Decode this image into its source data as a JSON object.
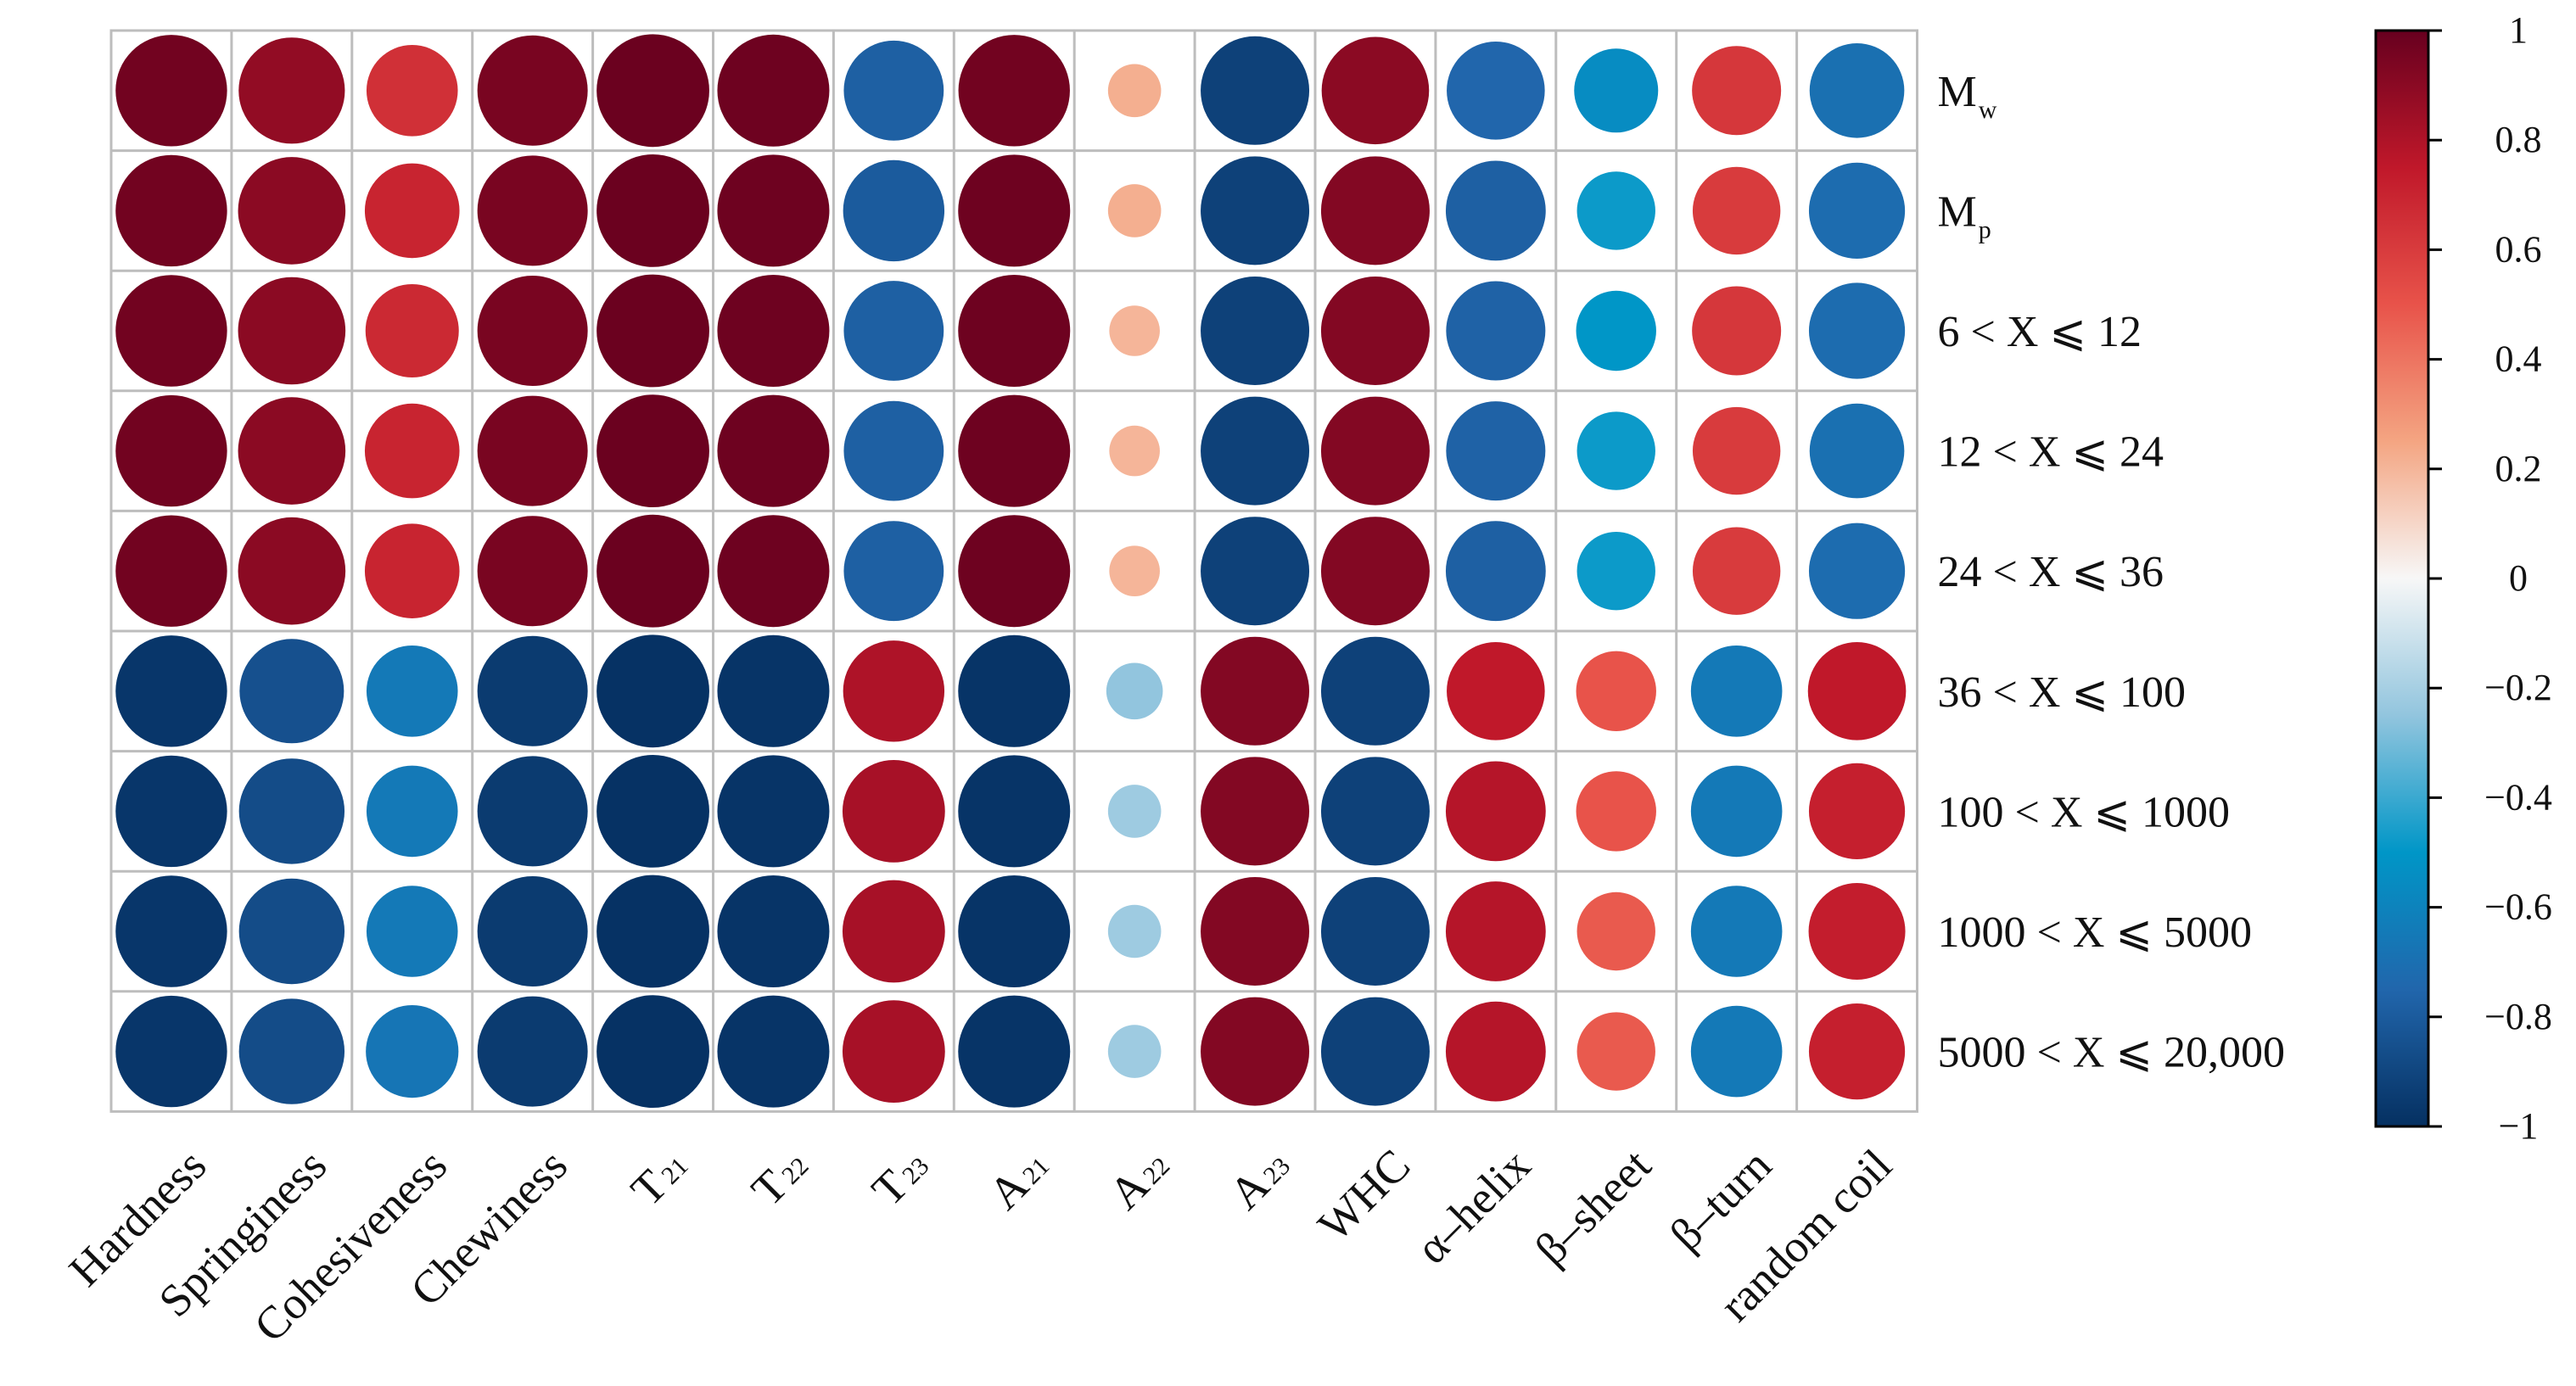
{
  "chart_data": {
    "type": "heatmap",
    "title": "",
    "columns": [
      "Hardness",
      "Springiness",
      "Cohesiveness",
      "Chewiness",
      "T21",
      "T22",
      "T23",
      "A21",
      "A22",
      "A23",
      "WHC",
      "α–helix",
      "β–sheet",
      "β–turn",
      "random coil"
    ],
    "column_labels": [
      {
        "main": "Hardness",
        "sub": ""
      },
      {
        "main": "Springiness",
        "sub": ""
      },
      {
        "main": "Cohesiveness",
        "sub": ""
      },
      {
        "main": "Chewiness",
        "sub": ""
      },
      {
        "main": "T",
        "sub": "21"
      },
      {
        "main": "T",
        "sub": "22"
      },
      {
        "main": "T",
        "sub": "23"
      },
      {
        "main": "A",
        "sub": "21"
      },
      {
        "main": "A",
        "sub": "22"
      },
      {
        "main": "A",
        "sub": "23"
      },
      {
        "main": "WHC",
        "sub": ""
      },
      {
        "main": "α–helix",
        "sub": ""
      },
      {
        "main": "β–sheet",
        "sub": ""
      },
      {
        "main": "β–turn",
        "sub": ""
      },
      {
        "main": "random coil",
        "sub": ""
      }
    ],
    "rows": [
      "Mw",
      "Mp",
      "6 < X ⩽ 12",
      "12 < X ⩽ 24",
      "24 < X ⩽ 36",
      "36 < X ⩽ 100",
      "100 < X ⩽ 1000",
      "1000 < X ⩽ 5000",
      "5000 < X ⩽ 20,000"
    ],
    "row_labels": [
      {
        "main": "M",
        "sub": "w"
      },
      {
        "main": "M",
        "sub": "p"
      },
      {
        "main": "6 < X ⩽ 12",
        "sub": ""
      },
      {
        "main": "12 < X ⩽ 24",
        "sub": ""
      },
      {
        "main": "24 < X ⩽ 36",
        "sub": ""
      },
      {
        "main": "36 < X ⩽ 100",
        "sub": ""
      },
      {
        "main": "100 < X ⩽ 1000",
        "sub": ""
      },
      {
        "main": "1000 < X ⩽ 5000",
        "sub": ""
      },
      {
        "main": "5000 < X ⩽ 20,000",
        "sub": ""
      }
    ],
    "values": [
      [
        0.97,
        0.88,
        0.65,
        0.95,
        0.99,
        0.98,
        -0.78,
        0.97,
        0.22,
        -0.92,
        0.9,
        -0.75,
        -0.55,
        0.62,
        -0.7
      ],
      [
        0.97,
        0.9,
        0.7,
        0.95,
        0.99,
        0.98,
        -0.8,
        0.98,
        0.22,
        -0.92,
        0.92,
        -0.78,
        -0.48,
        0.6,
        -0.72
      ],
      [
        0.97,
        0.9,
        0.68,
        0.95,
        0.99,
        0.98,
        -0.78,
        0.98,
        0.2,
        -0.92,
        0.92,
        -0.77,
        -0.5,
        0.62,
        -0.72
      ],
      [
        0.97,
        0.9,
        0.7,
        0.95,
        0.99,
        0.98,
        -0.78,
        0.98,
        0.2,
        -0.92,
        0.92,
        -0.77,
        -0.48,
        0.6,
        -0.7
      ],
      [
        0.97,
        0.9,
        0.7,
        0.95,
        0.99,
        0.98,
        -0.78,
        0.98,
        0.2,
        -0.92,
        0.92,
        -0.78,
        -0.48,
        0.6,
        -0.72
      ],
      [
        -0.97,
        -0.85,
        -0.65,
        -0.95,
        -0.99,
        -0.98,
        0.8,
        -0.98,
        -0.25,
        0.92,
        -0.92,
        0.75,
        0.5,
        -0.65,
        0.75
      ],
      [
        -0.97,
        -0.87,
        -0.65,
        -0.95,
        -0.99,
        -0.98,
        0.82,
        -0.98,
        -0.22,
        0.92,
        -0.92,
        0.78,
        0.5,
        -0.65,
        0.72
      ],
      [
        -0.97,
        -0.87,
        -0.65,
        -0.95,
        -0.99,
        -0.98,
        0.82,
        -0.98,
        -0.22,
        0.92,
        -0.92,
        0.78,
        0.48,
        -0.65,
        0.73
      ],
      [
        -0.97,
        -0.87,
        -0.67,
        -0.95,
        -0.99,
        -0.98,
        0.82,
        -0.98,
        -0.22,
        0.92,
        -0.92,
        0.78,
        0.48,
        -0.65,
        0.72
      ]
    ],
    "colorbar": {
      "range": [
        -1,
        1
      ],
      "ticks": [
        1,
        0.8,
        0.6,
        0.4,
        0.2,
        0,
        -0.2,
        -0.4,
        -0.6,
        -0.8,
        -1
      ],
      "tick_labels": [
        "1",
        "0.8",
        "0.6",
        "0.4",
        "0.2",
        "0",
        "−0.2",
        "−0.4",
        "−0.6",
        "−0.8",
        "−1"
      ],
      "stops": [
        {
          "value": -1.0,
          "color": "#053061"
        },
        {
          "value": -0.75,
          "color": "#2166ac"
        },
        {
          "value": -0.5,
          "color": "#0096c7"
        },
        {
          "value": -0.25,
          "color": "#92c5de"
        },
        {
          "value": 0.0,
          "color": "#f7f7f7"
        },
        {
          "value": 0.25,
          "color": "#f4a582"
        },
        {
          "value": 0.5,
          "color": "#e8534a"
        },
        {
          "value": 0.75,
          "color": "#c0182a"
        },
        {
          "value": 1.0,
          "color": "#67001f"
        }
      ]
    },
    "grid_color": "#bdbdbd"
  }
}
